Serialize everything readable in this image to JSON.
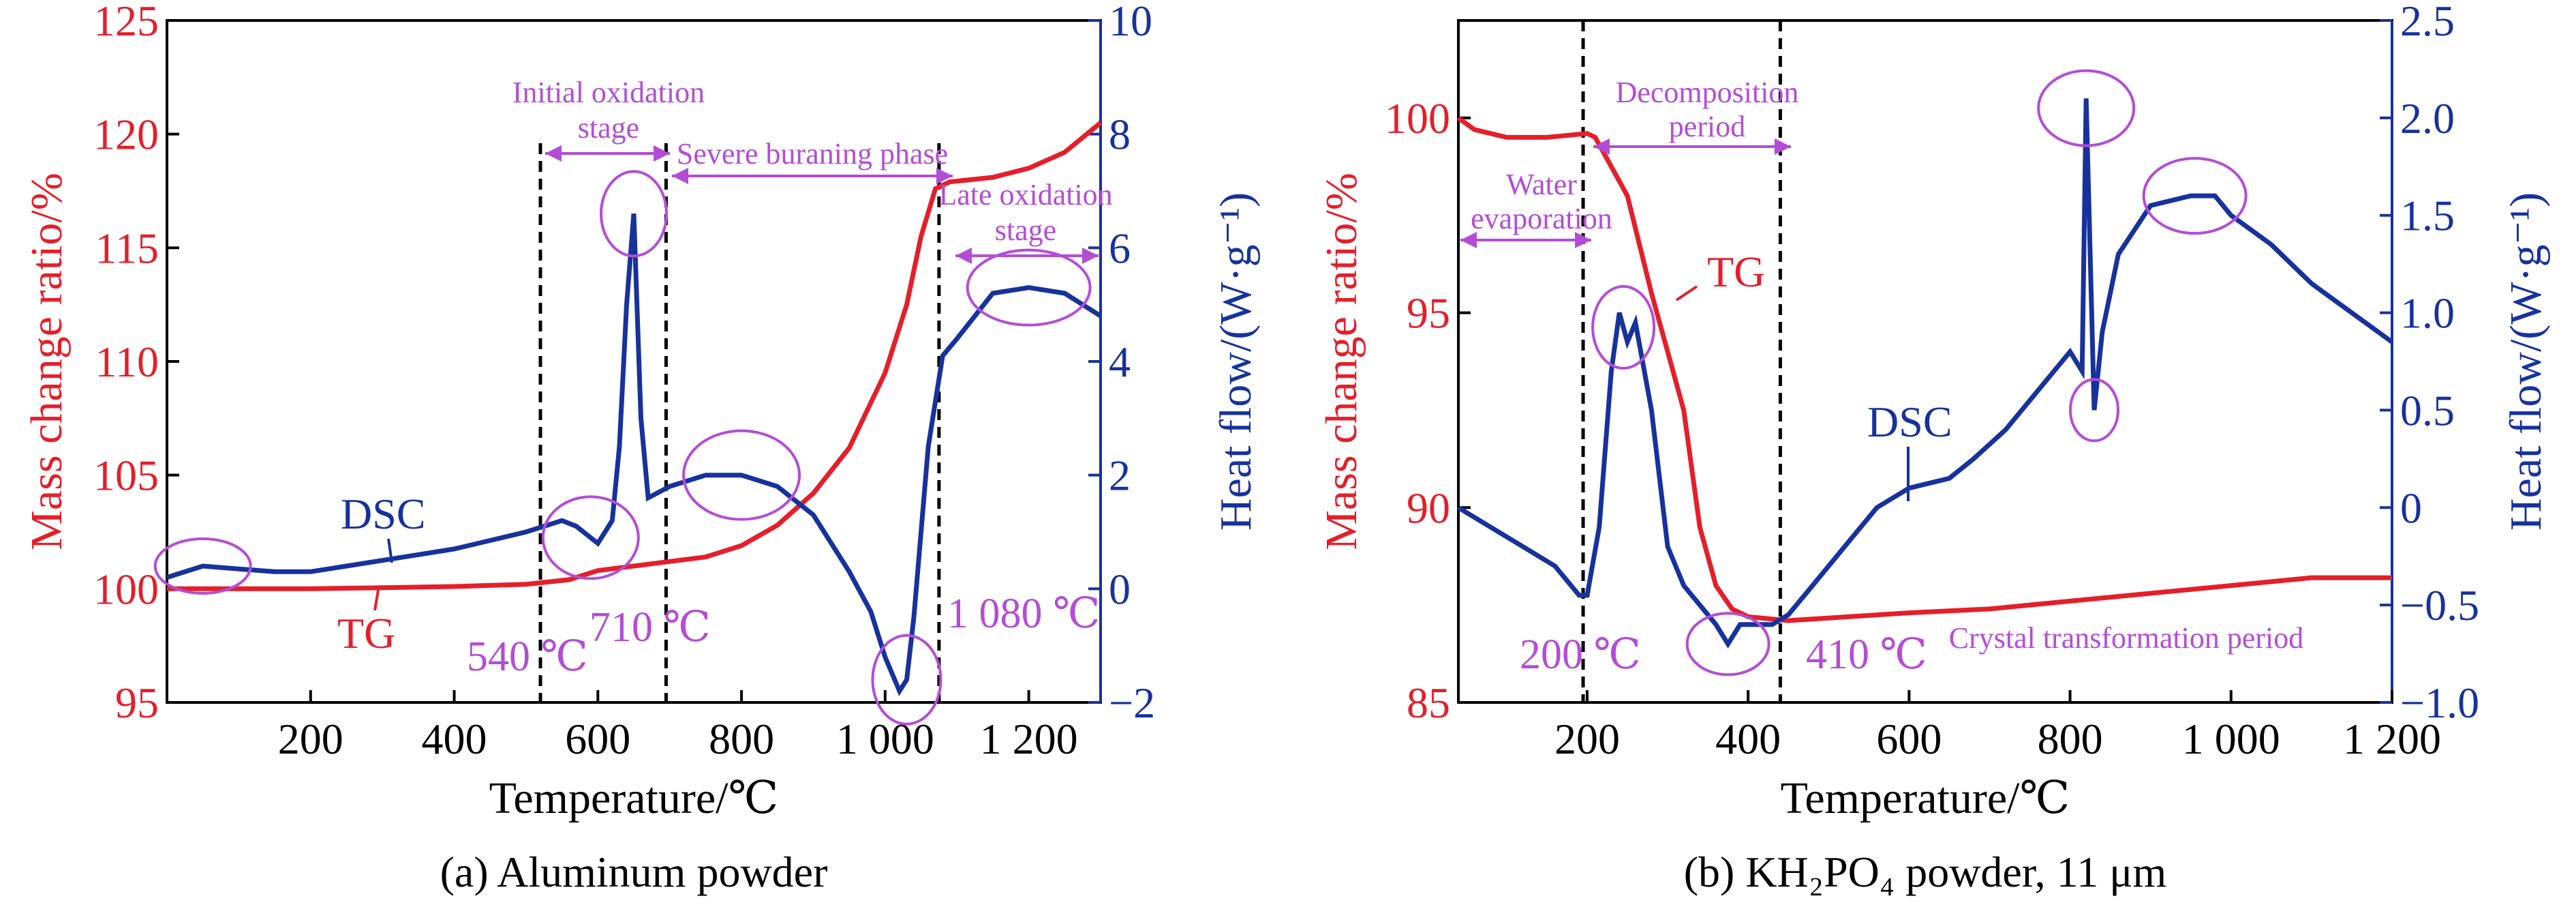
{
  "colors": {
    "tg": "#e41f2a",
    "dsc": "#17329c",
    "annot": "#b34dd6",
    "axis": "#000000"
  },
  "chart_data": [
    {
      "type": "line",
      "caption": "(a) Aluminum powder",
      "xlabel": "Temperature/℃",
      "ylabel_left": "Mass change ratio/%",
      "ylabel_right": "Heat flow/(W·g⁻¹)",
      "xlim": [
        0,
        1300
      ],
      "ylim_left": [
        95,
        125
      ],
      "ylim_right": [
        -2,
        10
      ],
      "xticks": [
        200,
        400,
        600,
        800,
        1000,
        1200
      ],
      "xtick_labels": [
        "200",
        "400",
        "600",
        "800",
        "1 000",
        "1 200"
      ],
      "yticks_left": [
        95,
        100,
        105,
        110,
        115,
        120,
        125
      ],
      "yticks_right": [
        -2,
        0,
        2,
        4,
        6,
        8,
        10
      ],
      "series": [
        {
          "name": "TG",
          "axis": "left",
          "x": [
            0,
            100,
            200,
            300,
            400,
            500,
            560,
            600,
            650,
            700,
            750,
            800,
            850,
            900,
            950,
            1000,
            1030,
            1050,
            1070,
            1090,
            1150,
            1200,
            1250,
            1300
          ],
          "y": [
            100,
            100,
            100,
            100.05,
            100.1,
            100.2,
            100.4,
            100.8,
            101.0,
            101.2,
            101.4,
            101.9,
            102.8,
            104.2,
            106.2,
            109.5,
            112.5,
            115.5,
            117.6,
            117.9,
            118.1,
            118.5,
            119.2,
            120.5
          ]
        },
        {
          "name": "DSC",
          "axis": "right",
          "x": [
            0,
            50,
            100,
            150,
            200,
            250,
            300,
            350,
            400,
            450,
            500,
            550,
            570,
            600,
            620,
            630,
            640,
            650,
            660,
            670,
            700,
            750,
            800,
            850,
            900,
            950,
            980,
            1000,
            1020,
            1030,
            1040,
            1060,
            1080,
            1100,
            1150,
            1200,
            1250,
            1300
          ],
          "y": [
            0.2,
            0.4,
            0.35,
            0.3,
            0.3,
            0.4,
            0.5,
            0.6,
            0.7,
            0.85,
            1.0,
            1.2,
            1.1,
            0.8,
            1.2,
            2.5,
            5.0,
            6.6,
            3.0,
            1.6,
            1.8,
            2.0,
            2.0,
            1.8,
            1.3,
            0.3,
            -0.4,
            -1.2,
            -1.8,
            -1.6,
            -0.5,
            2.5,
            4.1,
            4.4,
            5.2,
            5.3,
            5.2,
            4.8
          ]
        }
      ],
      "annotations": {
        "initial_oxidation": [
          "Initial oxidation",
          "stage"
        ],
        "severe_burning": "Severe buraning phase",
        "late_oxidation": [
          "Late oxidation",
          "stage"
        ],
        "temp_540": "540 ℃",
        "temp_710": "710 ℃",
        "temp_1080": "1 080 ℃",
        "vlines_x": [
          520,
          695,
          1075
        ],
        "circles_x": [
          50,
          590,
          650,
          800,
          1030,
          1200
        ]
      }
    },
    {
      "type": "line",
      "caption": "(b) KH₂PO₄ powder, 11 μm",
      "xlabel": "Temperature/℃",
      "ylabel_left": "Mass change ratio/%",
      "ylabel_right": "Heat flow/(W·g⁻¹)",
      "xlim": [
        40,
        1200
      ],
      "ylim_left": [
        85,
        102.5
      ],
      "ylim_right": [
        -1.0,
        2.5
      ],
      "xticks": [
        200,
        400,
        600,
        800,
        1000,
        1200
      ],
      "xtick_labels": [
        "200",
        "400",
        "600",
        "800",
        "1 000",
        "1 200"
      ],
      "yticks_left": [
        85,
        90,
        95,
        100
      ],
      "yticks_right": [
        -1.0,
        -0.5,
        0,
        0.5,
        1.0,
        1.5,
        2.0,
        2.5
      ],
      "ytick_labels_right": [
        "−1.0",
        "−0.5",
        "0",
        "0.5",
        "1.0",
        "1.5",
        "2.0",
        "2.5"
      ],
      "series": [
        {
          "name": "TG",
          "axis": "left",
          "x": [
            40,
            60,
            100,
            150,
            200,
            210,
            250,
            280,
            300,
            320,
            340,
            360,
            380,
            400,
            450,
            600,
            700,
            800,
            900,
            1000,
            1100,
            1200
          ],
          "y": [
            100,
            99.7,
            99.5,
            99.5,
            99.6,
            99.5,
            98,
            95.5,
            94,
            92.5,
            89.5,
            88,
            87.4,
            87.2,
            87.1,
            87.3,
            87.4,
            87.6,
            87.8,
            88,
            88.2,
            88.2
          ]
        },
        {
          "name": "DSC",
          "axis": "right",
          "x": [
            40,
            80,
            120,
            160,
            190,
            200,
            215,
            230,
            240,
            250,
            260,
            280,
            300,
            320,
            340,
            360,
            375,
            390,
            410,
            430,
            450,
            480,
            520,
            560,
            600,
            650,
            680,
            720,
            760,
            800,
            815,
            820,
            830,
            840,
            860,
            900,
            950,
            980,
            1000,
            1050,
            1100,
            1150,
            1200
          ],
          "y": [
            0,
            -0.1,
            -0.2,
            -0.3,
            -0.45,
            -0.45,
            -0.1,
            0.7,
            1.0,
            0.85,
            0.95,
            0.5,
            -0.2,
            -0.4,
            -0.5,
            -0.6,
            -0.7,
            -0.6,
            -0.6,
            -0.6,
            -0.55,
            -0.4,
            -0.2,
            0.0,
            0.1,
            0.15,
            0.25,
            0.4,
            0.6,
            0.8,
            0.7,
            2.1,
            0.5,
            0.9,
            1.3,
            1.55,
            1.6,
            1.6,
            1.5,
            1.35,
            1.15,
            1.0,
            0.85
          ]
        }
      ],
      "annotations": {
        "decomposition": [
          "Decomposition",
          "period"
        ],
        "water": [
          "Water",
          "evaporation"
        ],
        "crystal": "Crystal transformation period",
        "temp_200": "200 ℃",
        "temp_410": "410 ℃",
        "vlines_x": [
          195,
          440
        ],
        "circles_x": [
          245,
          375,
          820,
          830,
          955
        ]
      }
    }
  ]
}
